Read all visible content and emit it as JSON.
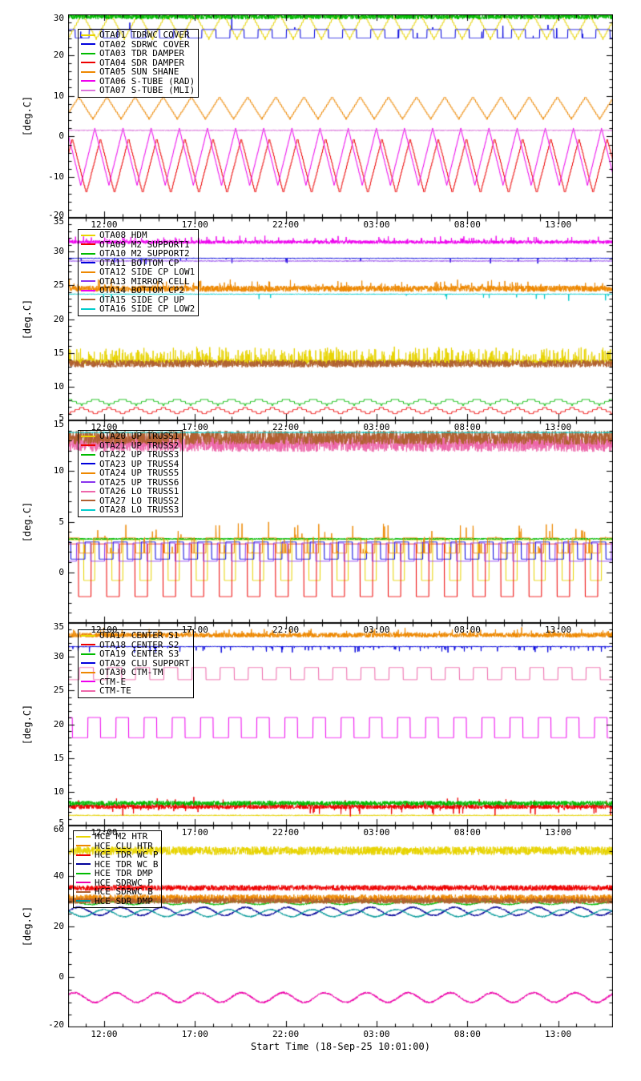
{
  "chart_data": {
    "type": "line",
    "x_title": "Start Time (18-Sep-25 10:01:00)",
    "x_ticks": [
      "12:00",
      "17:00",
      "22:00",
      "03:00",
      "08:00",
      "13:00"
    ],
    "x_tick_hours": [
      1.983,
      6.983,
      11.983,
      16.983,
      21.983,
      26.983
    ],
    "x_range_hours": [
      0,
      30
    ],
    "x_minor_start": 0.983,
    "x_minor_step": 1,
    "grid": false,
    "legend_position": "upper-left-inside",
    "panels": [
      {
        "ylabel": "[deg.C]",
        "ylim": [
          -20,
          30
        ],
        "yticks": [
          30,
          20,
          10,
          0,
          -10,
          -20
        ],
        "y_minor": 2,
        "series": [
          {
            "label": "OTA01 TDRWC COVER",
            "color": "#e8d400",
            "gen": {
              "type": "triangle",
              "min": 24.0,
              "max": 30.2,
              "period": 1.55,
              "phase": 0.0,
              "q": 0.7
            }
          },
          {
            "label": "OTA02 SDRWC COVER",
            "color": "#0000dd",
            "gen": {
              "type": "square",
              "lo": 24.2,
              "hi": 26.3,
              "period": 1.55,
              "duty": 0.5,
              "phase": 0.25,
              "spike_p": 0.006,
              "spike_amp": 3.0
            }
          },
          {
            "label": "OTA03 TDR DAMPER",
            "color": "#00bb00",
            "gen": {
              "type": "band",
              "mean": 29.5,
              "amp": 0.7
            }
          },
          {
            "label": "OTA04 SDR DAMPER",
            "color": "#ee0000",
            "gen": {
              "type": "triangle",
              "min": -14.0,
              "max": -0.5,
              "period": 1.55,
              "phase": 0.35,
              "q": 0.8
            }
          },
          {
            "label": "OTA05 SUN SHANE",
            "color": "#ee8800",
            "gen": {
              "type": "triangle",
              "min": 4.3,
              "max": 9.7,
              "period": 1.55,
              "phase": 0.12,
              "q": 0.6
            }
          },
          {
            "label": "OTA06 S-TUBE (RAD)",
            "color": "#ee00ee",
            "gen": {
              "type": "triangle",
              "min": -12.0,
              "max": 2.0,
              "period": 1.55,
              "phase": 0.55,
              "q": 0.5
            }
          },
          {
            "label": "OTA07 S-TUBE (MLI)",
            "color": "#dd77dd",
            "gen": {
              "type": "flat",
              "mean": 1.5,
              "noise": 0.12
            }
          }
        ]
      },
      {
        "ylabel": "[deg.C]",
        "ylim": [
          5,
          35
        ],
        "yticks": [
          35,
          30,
          25,
          20,
          15,
          10,
          5
        ],
        "y_minor": 1,
        "series": [
          {
            "label": "OTA08 HDM",
            "color": "#e8d400",
            "gen": {
              "type": "band",
              "mean": 13.7,
              "amp": 0.35,
              "spike_p": 0.22,
              "spike_amp": 1.9
            }
          },
          {
            "label": "OTA09 M2 SUPPORT1",
            "color": "#ee0000",
            "gen": {
              "type": "triangle",
              "min": 6.0,
              "max": 6.9,
              "period": 1.5,
              "phase": 0.0,
              "q": 0.3
            }
          },
          {
            "label": "OTA10 M2 SUPPORT2",
            "color": "#00bb00",
            "gen": {
              "type": "triangle",
              "min": 7.3,
              "max": 8.2,
              "period": 1.5,
              "phase": 0.5,
              "q": 0.3
            }
          },
          {
            "label": "OTA11 BOTTOM CP",
            "color": "#0000dd",
            "gen": {
              "type": "flat",
              "mean": 29.0,
              "noise": 0.06,
              "spike_p": 0.01,
              "spike_amp": -0.9
            }
          },
          {
            "label": "OTA12 SIDE CP LOW1",
            "color": "#ee8800",
            "gen": {
              "type": "band",
              "mean": 24.5,
              "amp": 0.45,
              "spike_p": 0.06,
              "spike_amp": 1.1
            }
          },
          {
            "label": "OTA13 MIRROR CELL",
            "color": "#8833ee",
            "gen": {
              "type": "flat",
              "mean": 28.6,
              "noise": 0.05
            }
          },
          {
            "label": "OTA14 BOTTOM CP2",
            "color": "#ee00ee",
            "gen": {
              "type": "band",
              "mean": 31.4,
              "amp": 0.25,
              "spike_p": 0.06,
              "spike_amp": 0.8
            }
          },
          {
            "label": "OTA15 SIDE CP UP",
            "color": "#b06030",
            "gen": {
              "type": "band",
              "mean": 13.4,
              "amp": 0.55
            }
          },
          {
            "label": "OTA16 SIDE CP LOW2",
            "color": "#00cccc",
            "gen": {
              "type": "flat",
              "mean": 23.7,
              "noise": 0.05,
              "spike_p": 0.008,
              "spike_amp": -1.3
            }
          }
        ]
      },
      {
        "ylabel": "[deg.C]",
        "ylim": [
          -5,
          15
        ],
        "yticks": [
          15,
          10,
          5,
          0
        ],
        "y_minor": 1,
        "series": [
          {
            "label": "OTA20 UP TRUSS1",
            "color": "#e8d400",
            "gen": {
              "type": "square",
              "lo": -0.8,
              "hi": 3.0,
              "period": 1.55,
              "duty": 0.6,
              "phase": 0.05,
              "q": 0.4
            }
          },
          {
            "label": "OTA21 UP TRUSS2",
            "color": "#ee0000",
            "gen": {
              "type": "square",
              "lo": -2.6,
              "hi": 2.8,
              "period": 1.55,
              "duty": 0.55,
              "phase": 0.18,
              "q": 0.4
            }
          },
          {
            "label": "OTA22 UP TRUSS3",
            "color": "#00bb00",
            "gen": {
              "type": "flat",
              "mean": 3.3,
              "noise": 0.08
            }
          },
          {
            "label": "OTA23 UP TRUSS4",
            "color": "#0000dd",
            "gen": {
              "type": "square",
              "lo": 1.3,
              "hi": 3.0,
              "period": 1.55,
              "duty": 0.5,
              "phase": 0.4
            }
          },
          {
            "label": "OTA24 UP TRUSS5",
            "color": "#ee8800",
            "gen": {
              "type": "square",
              "lo": 1.9,
              "hi": 3.4,
              "period": 1.55,
              "duty": 0.5,
              "phase": 0.1,
              "spike_p": 0.04,
              "spike_amp": 1.6
            }
          },
          {
            "label": "OTA25 UP TRUSS6",
            "color": "#8833ee",
            "gen": {
              "type": "square",
              "lo": 1.1,
              "hi": 2.9,
              "period": 1.55,
              "duty": 0.5,
              "phase": 0.7
            }
          },
          {
            "label": "OTA26 LO TRUSS1",
            "color": "#ee66aa",
            "gen": {
              "type": "band",
              "mean": 12.7,
              "amp": 0.8
            }
          },
          {
            "label": "OTA27 LO TRUSS2",
            "color": "#b06030",
            "gen": {
              "type": "band",
              "mean": 13.3,
              "amp": 0.7
            }
          },
          {
            "label": "OTA28 LO TRUSS3",
            "color": "#00cccc",
            "gen": {
              "type": "flat",
              "mean": 13.8,
              "noise": 0.05
            }
          }
        ]
      },
      {
        "ylabel": "[deg.C]",
        "ylim": [
          5,
          35
        ],
        "yticks": [
          35,
          30,
          25,
          20,
          15,
          10,
          5
        ],
        "y_minor": 1,
        "series": [
          {
            "label": "OTA17 CENTER S1",
            "color": "#e8d400",
            "gen": {
              "type": "flat",
              "mean": 6.5,
              "noise": 0.08
            }
          },
          {
            "label": "OTA18 CENTER S2",
            "color": "#ee0000",
            "gen": {
              "type": "band",
              "mean": 7.8,
              "amp": 0.35,
              "spike_p": 0.05,
              "spike_amp": 1.2,
              "spike_both": true
            }
          },
          {
            "label": "OTA19 CENTER S3",
            "color": "#00bb00",
            "gen": {
              "type": "band",
              "mean": 8.3,
              "amp": 0.35
            }
          },
          {
            "label": "OTA29 CLU SUPPORT",
            "color": "#0000dd",
            "gen": {
              "type": "flat",
              "mean": 31.5,
              "noise": 0.07,
              "spike_p": 0.04,
              "spike_amp": -0.9
            }
          },
          {
            "label": "OTA30 CTM-TM",
            "color": "#ee8800",
            "gen": {
              "type": "band",
              "mean": 33.2,
              "amp": 0.35,
              "spike_p": 0.05,
              "spike_amp": 0.9
            }
          },
          {
            "label": "CTM-E",
            "color": "#ee00ee",
            "gen": {
              "type": "square",
              "lo": 17.8,
              "hi": 20.8,
              "period": 1.55,
              "duty": 0.45,
              "phase": 0.3,
              "q": 0.6
            }
          },
          {
            "label": "CTM-TE",
            "color": "#ee66aa",
            "gen": {
              "type": "square",
              "lo": 26.6,
              "hi": 28.4,
              "period": 1.55,
              "duty": 0.5,
              "phase": 0.6
            }
          }
        ]
      },
      {
        "ylabel": "[deg.C]",
        "ylim": [
          -20,
          60
        ],
        "yticks": [
          60,
          40,
          20,
          0,
          -20
        ],
        "y_minor": 5,
        "series": [
          {
            "label": "HCE M2 HTR",
            "color": "#e8d400",
            "gen": {
              "type": "band",
              "mean": 50.0,
              "amp": 1.7
            }
          },
          {
            "label": "HCE CLU HTR",
            "color": "#ee8800",
            "gen": {
              "type": "band",
              "mean": 31.0,
              "amp": 1.7
            }
          },
          {
            "label": "HCE TDR WC P",
            "color": "#ee0000",
            "gen": {
              "type": "band",
              "mean": 35.3,
              "amp": 1.1
            }
          },
          {
            "label": "HCE TDR WC B",
            "color": "#000099",
            "gen": {
              "type": "sine",
              "mean": 26.0,
              "amp": 1.6,
              "period": 2.3,
              "phase": 0.0,
              "noise": 0.35
            }
          },
          {
            "label": "HCE TDR DMP",
            "color": "#00bb00",
            "gen": {
              "type": "sine",
              "mean": 29.3,
              "amp": 0.6,
              "period": 2.3,
              "phase": 0.2,
              "noise": 0.3
            }
          },
          {
            "label": "HCE SDRWC P",
            "color": "#ee00aa",
            "gen": {
              "type": "sine",
              "mean": -8.2,
              "amp": 1.9,
              "period": 2.3,
              "phase": 0.1,
              "noise": 0.4
            }
          },
          {
            "label": "HCE SDRWC B",
            "color": "#b06030",
            "gen": {
              "type": "band",
              "mean": 30.2,
              "amp": 1.2
            }
          },
          {
            "label": "HCE SDR DMP",
            "color": "#009999",
            "gen": {
              "type": "sine",
              "mean": 25.3,
              "amp": 1.4,
              "period": 2.3,
              "phase": 0.4,
              "noise": 0.3
            }
          }
        ]
      }
    ]
  }
}
